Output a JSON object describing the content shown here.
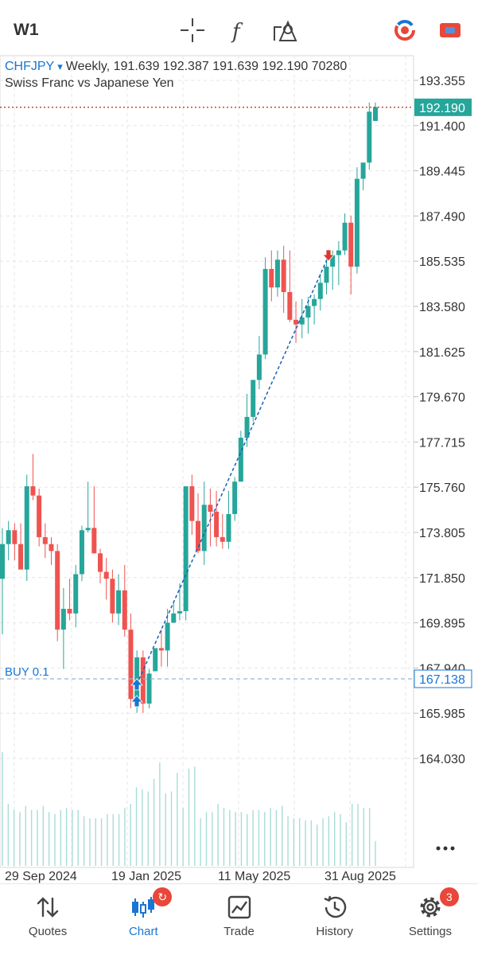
{
  "toolbar": {
    "timeframe": "W1",
    "icons": [
      "crosshair-icon",
      "function-icon",
      "objects-icon",
      "one-click-trading-icon",
      "chart-color-icon"
    ]
  },
  "chart_info": {
    "symbol": "CHFJPY",
    "dropdown_arrow": "▾",
    "summary": "Weekly, 191.639 192.387 191.639 192.190 70280",
    "description": "Swiss Franc vs Japanese Yen"
  },
  "chart_data": {
    "type": "candlestick",
    "symbol": "CHFJPY",
    "period": "Weekly",
    "ohlc_last": {
      "open": 191.639,
      "high": 192.387,
      "low": 191.639,
      "close": 192.19,
      "volume": 70280
    },
    "price_axis_ticks": [
      "193.355",
      "191.400",
      "189.445",
      "187.490",
      "185.535",
      "183.580",
      "181.625",
      "179.670",
      "177.715",
      "175.760",
      "173.805",
      "171.850",
      "169.895",
      "167.940",
      "165.985",
      "164.030"
    ],
    "time_axis_ticks": [
      "29 Sep 2024",
      "19 Jan 2025",
      "11 May 2025",
      "31 Aug 2025"
    ],
    "current_price": "192.190",
    "position_line": {
      "label": "BUY 0.1",
      "price": "167.138"
    },
    "candles": [
      [
        171.8,
        174.0,
        169.4,
        173.3
      ],
      [
        173.3,
        174.3,
        172.6,
        173.9
      ],
      [
        173.9,
        174.2,
        172.6,
        173.3
      ],
      [
        173.3,
        174.2,
        172.2,
        172.2
      ],
      [
        172.2,
        176.3,
        171.7,
        175.8
      ],
      [
        175.8,
        177.2,
        175.2,
        175.4
      ],
      [
        175.4,
        175.7,
        173.2,
        173.6
      ],
      [
        173.6,
        174.2,
        172.7,
        173.3
      ],
      [
        173.3,
        173.6,
        172.4,
        173.0
      ],
      [
        173.0,
        173.3,
        169.1,
        169.6
      ],
      [
        169.6,
        171.4,
        167.9,
        170.5
      ],
      [
        170.5,
        171.8,
        170.0,
        170.3
      ],
      [
        170.3,
        172.4,
        169.7,
        172.0
      ],
      [
        172.0,
        174.1,
        171.7,
        173.9
      ],
      [
        173.9,
        176.0,
        173.8,
        174.0
      ],
      [
        174.0,
        175.8,
        172.9,
        172.9
      ],
      [
        172.9,
        173.1,
        171.6,
        172.1
      ],
      [
        172.1,
        172.7,
        170.9,
        171.8
      ],
      [
        171.8,
        172.2,
        169.9,
        170.3
      ],
      [
        170.3,
        172.0,
        169.8,
        171.3
      ],
      [
        171.3,
        172.4,
        169.3,
        169.6
      ],
      [
        169.6,
        170.3,
        166.2,
        166.6
      ],
      [
        166.4,
        168.7,
        166.0,
        168.4
      ],
      [
        168.4,
        168.7,
        166.0,
        166.4
      ],
      [
        166.4,
        167.9,
        166.2,
        167.7
      ],
      [
        167.8,
        168.7,
        167.8,
        168.8
      ],
      [
        168.8,
        169.6,
        168.0,
        168.7
      ],
      [
        168.7,
        170.5,
        168.0,
        169.9
      ],
      [
        169.9,
        170.8,
        169.9,
        170.3
      ],
      [
        170.3,
        171.6,
        170.0,
        170.4
      ],
      [
        170.4,
        175.8,
        170.0,
        175.8
      ],
      [
        175.8,
        176.3,
        173.7,
        174.3
      ],
      [
        174.3,
        175.5,
        172.9,
        173.0
      ],
      [
        173.0,
        176.0,
        172.4,
        175.0
      ],
      [
        175.0,
        175.7,
        173.2,
        174.7
      ],
      [
        174.7,
        175.6,
        173.2,
        173.6
      ],
      [
        173.6,
        174.6,
        173.1,
        173.4
      ],
      [
        173.4,
        175.6,
        173.1,
        174.6
      ],
      [
        174.6,
        176.2,
        174.3,
        176.0
      ],
      [
        176.0,
        178.2,
        176.0,
        177.9
      ],
      [
        177.9,
        179.8,
        177.5,
        178.8
      ],
      [
        178.8,
        180.4,
        178.6,
        180.4
      ],
      [
        180.4,
        182.3,
        180.0,
        181.5
      ],
      [
        181.5,
        185.7,
        181.3,
        185.2
      ],
      [
        185.2,
        186.0,
        183.8,
        184.4
      ],
      [
        184.4,
        186.0,
        184.0,
        185.6
      ],
      [
        185.6,
        186.2,
        183.3,
        184.2
      ],
      [
        184.2,
        186.0,
        182.9,
        183.0
      ],
      [
        183.0,
        183.8,
        182.0,
        182.8
      ],
      [
        182.8,
        183.9,
        182.2,
        183.1
      ],
      [
        183.1,
        184.0,
        182.4,
        183.6
      ],
      [
        183.6,
        184.1,
        182.8,
        183.9
      ],
      [
        183.9,
        185.0,
        183.4,
        184.6
      ],
      [
        184.6,
        185.9,
        184.1,
        185.3
      ],
      [
        185.3,
        186.0,
        184.3,
        185.8
      ],
      [
        185.8,
        186.4,
        184.5,
        186.0
      ],
      [
        186.0,
        187.6,
        185.8,
        187.2
      ],
      [
        187.2,
        187.5,
        184.1,
        185.3
      ],
      [
        185.3,
        189.6,
        185.0,
        189.1
      ],
      [
        189.1,
        189.6,
        188.6,
        189.8
      ],
      [
        189.8,
        192.4,
        189.5,
        192.0
      ],
      [
        191.6,
        192.4,
        191.6,
        192.2
      ]
    ],
    "volume_profile": [
      0.55,
      0.3,
      0.27,
      0.26,
      0.29,
      0.27,
      0.27,
      0.29,
      0.26,
      0.25,
      0.27,
      0.28,
      0.27,
      0.27,
      0.24,
      0.23,
      0.23,
      0.23,
      0.25,
      0.25,
      0.25,
      0.28,
      0.3,
      0.38,
      0.37,
      0.36,
      0.42,
      0.5,
      0.35,
      0.36,
      0.45,
      0.28,
      0.47,
      0.48,
      0.23,
      0.26,
      0.26,
      0.3,
      0.28,
      0.27,
      0.26,
      0.26,
      0.25,
      0.27,
      0.27,
      0.26,
      0.28,
      0.27,
      0.29,
      0.24,
      0.23,
      0.23,
      0.22,
      0.22,
      0.2,
      0.23,
      0.24,
      0.26,
      0.25,
      0.21,
      0.3,
      0.3,
      0.28,
      0.28,
      0.12
    ],
    "trade_markers": [
      {
        "type": "buy",
        "note": "blue up arrow"
      },
      {
        "type": "sell",
        "note": "red down arrow"
      }
    ],
    "colors": {
      "bull": "#26a69a",
      "bear": "#ef5350",
      "grid": "#e6e6e6",
      "price_line": "#c0392b",
      "position_line": "#9bb3c9",
      "trade_line": "#1a5fb4"
    }
  },
  "more_button": {
    "icon": "more-dots-icon"
  },
  "bottom_nav": {
    "items": [
      {
        "label": "Quotes",
        "icon": "quotes-icon"
      },
      {
        "label": "Chart",
        "icon": "chart-icon",
        "active": true,
        "badge_icon": "refresh-icon"
      },
      {
        "label": "Trade",
        "icon": "trade-icon"
      },
      {
        "label": "History",
        "icon": "history-icon"
      },
      {
        "label": "Settings",
        "icon": "gear-icon",
        "badge": "3"
      }
    ]
  }
}
